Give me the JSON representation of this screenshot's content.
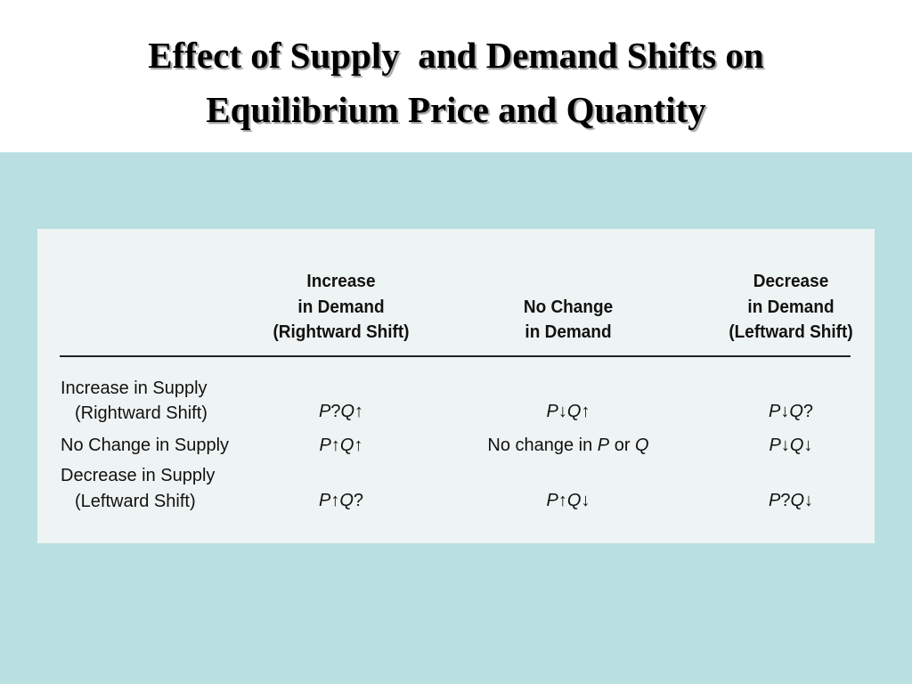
{
  "title": [
    "Effect of Supply  and Demand Shifts on",
    "Equilibrium Price and Quantity"
  ],
  "table": {
    "columns": [
      [
        "Increase",
        "in Demand",
        "(Rightward Shift)"
      ],
      [
        "No Change",
        "in Demand"
      ],
      [
        "Decrease",
        "in Demand",
        "(Leftward Shift)"
      ]
    ],
    "rows": [
      {
        "label": [
          "Increase in Supply",
          "(Rightward Shift)"
        ],
        "cells": [
          "P?Q↑",
          "P↓Q↑",
          "P↓Q?"
        ]
      },
      {
        "label": [
          "No Change in Supply"
        ],
        "cells": [
          "P↑Q↑",
          "No change in P or Q",
          "P↓Q↓"
        ]
      },
      {
        "label": [
          "Decrease in Supply",
          "(Leftward Shift)"
        ],
        "cells": [
          "P↑Q?",
          "P↑Q↓",
          "P?Q↓"
        ]
      }
    ]
  }
}
